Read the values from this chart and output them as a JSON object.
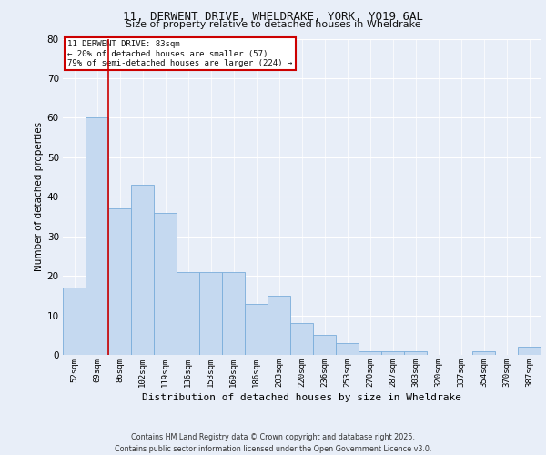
{
  "title_line1": "11, DERWENT DRIVE, WHELDRAKE, YORK, YO19 6AL",
  "title_line2": "Size of property relative to detached houses in Wheldrake",
  "xlabel": "Distribution of detached houses by size in Wheldrake",
  "ylabel": "Number of detached properties",
  "categories": [
    "52sqm",
    "69sqm",
    "86sqm",
    "102sqm",
    "119sqm",
    "136sqm",
    "153sqm",
    "169sqm",
    "186sqm",
    "203sqm",
    "220sqm",
    "236sqm",
    "253sqm",
    "270sqm",
    "287sqm",
    "303sqm",
    "320sqm",
    "337sqm",
    "354sqm",
    "370sqm",
    "387sqm"
  ],
  "values": [
    17,
    60,
    37,
    43,
    36,
    21,
    21,
    21,
    13,
    15,
    8,
    5,
    3,
    1,
    1,
    1,
    0,
    0,
    1,
    0,
    2
  ],
  "bar_color": "#c5d9f0",
  "bar_edge_color": "#7aadda",
  "red_line_index": 1.5,
  "annotation_line1": "11 DERWENT DRIVE: 83sqm",
  "annotation_line2": "← 20% of detached houses are smaller (57)",
  "annotation_line3": "79% of semi-detached houses are larger (224) →",
  "box_facecolor": "#ffffff",
  "box_edgecolor": "#cc0000",
  "red_line_color": "#cc0000",
  "ylim": [
    0,
    80
  ],
  "yticks": [
    0,
    10,
    20,
    30,
    40,
    50,
    60,
    70,
    80
  ],
  "background_color": "#e8eef8",
  "footer_text": "Contains HM Land Registry data © Crown copyright and database right 2025.\nContains public sector information licensed under the Open Government Licence v3.0."
}
